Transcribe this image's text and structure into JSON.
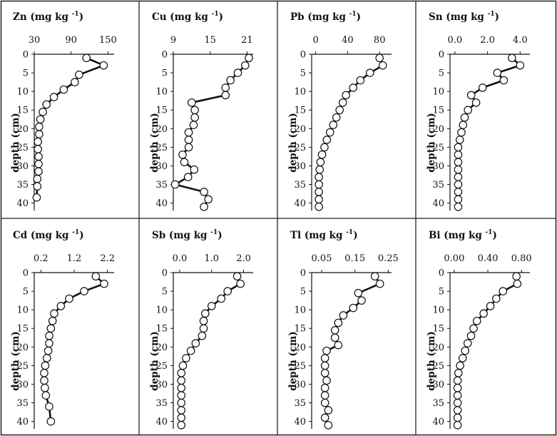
{
  "chart_data": [
    {
      "type": "line",
      "title": "Zn (mg kg",
      "title_sup": "-1",
      ")": "",
      "title_end": ")",
      "ylabel": "depth (cm)",
      "xticks": [
        "30",
        "90",
        "150"
      ],
      "xtick_values": [
        30,
        90,
        150
      ],
      "xlim": [
        30,
        160
      ],
      "yticks": [
        "0",
        "5",
        "10",
        "15",
        "20",
        "25",
        "30",
        "35",
        "40"
      ],
      "ylim": [
        0,
        42
      ],
      "x": [
        115,
        143,
        103,
        96,
        78,
        62,
        50,
        44,
        40,
        38,
        38,
        36,
        36,
        37,
        37,
        37,
        35,
        35,
        34
      ],
      "y": [
        1,
        3,
        5.5,
        7.5,
        9.5,
        11.5,
        13.5,
        15.5,
        17.5,
        19.5,
        21.5,
        23.5,
        25.5,
        27.5,
        29.5,
        31.5,
        33.5,
        35.5,
        38.5
      ]
    },
    {
      "type": "line",
      "title": "Cu (mg kg",
      "title_sup": "-1",
      "title_end": ")",
      "ylabel": "depth (cm)",
      "xticks": [
        "9",
        "15",
        "21"
      ],
      "xtick_values": [
        9,
        15,
        21
      ],
      "xlim": [
        9,
        22
      ],
      "yticks": [
        "0",
        "5",
        "10",
        "15",
        "20",
        "25",
        "30",
        "35",
        "40"
      ],
      "ylim": [
        0,
        42
      ],
      "x": [
        21.3,
        20.7,
        19.5,
        18.3,
        17.5,
        17.5,
        12,
        12.5,
        12.5,
        12.3,
        11.5,
        11.5,
        11.5,
        10.5,
        10.8,
        12.4,
        11.4,
        9.3,
        14,
        14.7,
        14
      ],
      "y": [
        1,
        3,
        5,
        7,
        9,
        11,
        13,
        15,
        17,
        19,
        21,
        23,
        25,
        27,
        29,
        31,
        33,
        35,
        37,
        39,
        41
      ]
    },
    {
      "type": "line",
      "title": "Pb (mg kg",
      "title_sup": "-1",
      "title_end": ")",
      "ylabel": "depth (cm)",
      "xticks": [
        "0",
        "40",
        "80"
      ],
      "xtick_values": [
        0,
        40,
        80
      ],
      "xlim": [
        -5,
        95
      ],
      "yticks": [
        "0",
        "5",
        "10",
        "15",
        "20",
        "25",
        "30",
        "35",
        "40"
      ],
      "ylim": [
        0,
        42
      ],
      "x": [
        80,
        84,
        68,
        56,
        47,
        38,
        34,
        30,
        26,
        22,
        18,
        14,
        11,
        8,
        6,
        5,
        4,
        4,
        4,
        4,
        4
      ],
      "y": [
        1,
        3,
        5,
        7,
        9,
        11,
        13,
        15,
        17,
        19,
        21,
        23,
        25,
        27,
        29,
        31,
        33,
        35,
        37,
        39,
        41
      ]
    },
    {
      "type": "line",
      "title": "Sn (mg kg",
      "title_sup": "-1",
      "title_end": ")",
      "ylabel": "depth (cm)",
      "xticks": [
        "0.0",
        "2.0",
        "4.0"
      ],
      "xtick_values": [
        0,
        2,
        4
      ],
      "xlim": [
        -0.3,
        4.6
      ],
      "yticks": [
        "0",
        "5",
        "10",
        "15",
        "20",
        "25",
        "30",
        "35",
        "40"
      ],
      "ylim": [
        0,
        42
      ],
      "x": [
        3.5,
        4.0,
        2.6,
        3.0,
        1.7,
        1.0,
        1.3,
        0.8,
        0.6,
        0.5,
        0.4,
        0.3,
        0.2,
        0.2,
        0.2,
        0.2,
        0.2,
        0.2,
        0.2,
        0.2,
        0.2
      ],
      "y": [
        1,
        3,
        5,
        7,
        9,
        11,
        13,
        15,
        17,
        19,
        21,
        23,
        25,
        27,
        29,
        31,
        33,
        35,
        37,
        39,
        41
      ]
    },
    {
      "type": "line",
      "title": "Cd (mg kg",
      "title_sup": "-1",
      "title_end": ")",
      "ylabel": "depth (cm)",
      "xticks": [
        "0.2",
        "1.2",
        "2.2"
      ],
      "xtick_values": [
        0.2,
        1.2,
        2.2
      ],
      "xlim": [
        0,
        2.4
      ],
      "yticks": [
        "0",
        "5",
        "10",
        "15",
        "20",
        "25",
        "30",
        "35",
        "40"
      ],
      "ylim": [
        0,
        42
      ],
      "x": [
        1.85,
        2.1,
        1.5,
        1.05,
        0.8,
        0.6,
        0.55,
        0.5,
        0.45,
        0.45,
        0.42,
        0.38,
        0.33,
        0.3,
        0.3,
        0.32,
        0.35,
        0.45,
        0.5
      ],
      "y": [
        1,
        3,
        5,
        7,
        9,
        11,
        13,
        15,
        17,
        19,
        21,
        23,
        25,
        27,
        29,
        31,
        33,
        36,
        40
      ]
    },
    {
      "type": "line",
      "title": "Sb (mg kg",
      "title_sup": "-1",
      "title_end": ")",
      "ylabel": "depth (cm)",
      "xticks": [
        "0.0",
        "1.0",
        "2.0"
      ],
      "xtick_values": [
        0,
        1,
        2
      ],
      "xlim": [
        -0.2,
        2.3
      ],
      "yticks": [
        "0",
        "5",
        "10",
        "15",
        "20",
        "25",
        "30",
        "35",
        "40"
      ],
      "ylim": [
        0,
        42
      ],
      "x": [
        1.8,
        1.9,
        1.5,
        1.3,
        1.0,
        0.8,
        0.75,
        0.75,
        0.7,
        0.5,
        0.35,
        0.2,
        0.1,
        0.05,
        0.05,
        0.05,
        0.05,
        0.05,
        0.05,
        0.05,
        0.05
      ],
      "y": [
        1,
        3,
        5,
        7,
        9,
        11,
        13,
        15,
        17,
        19,
        21,
        23,
        25,
        27,
        29,
        31,
        33,
        35,
        37,
        39,
        41
      ]
    },
    {
      "type": "line",
      "title": "Tl (mg kg",
      "title_sup": "-1",
      "title_end": ")",
      "ylabel": "depth (cm)",
      "xticks": [
        "0.05",
        "0.15",
        "0.25"
      ],
      "xtick_values": [
        0.05,
        0.15,
        0.25
      ],
      "xlim": [
        0.02,
        0.26
      ],
      "yticks": [
        "0",
        "5",
        "10",
        "15",
        "20",
        "25",
        "30",
        "35",
        "40"
      ],
      "ylim": [
        0,
        42
      ],
      "x": [
        0.21,
        0.225,
        0.16,
        0.17,
        0.145,
        0.115,
        0.1,
        0.09,
        0.09,
        0.1,
        0.065,
        0.06,
        0.06,
        0.06,
        0.065,
        0.06,
        0.06,
        0.06,
        0.07,
        0.06,
        0.07
      ],
      "y": [
        1,
        3,
        5.5,
        7.5,
        9.5,
        11.5,
        13.5,
        15.5,
        17.5,
        19.5,
        21,
        23,
        25,
        27,
        29,
        31,
        33,
        35,
        37,
        39,
        41
      ]
    },
    {
      "type": "line",
      "title": "Bi (mg kg",
      "title_sup": "-1",
      "title_end": ")",
      "ylabel": "depth (cm)",
      "xticks": [
        "0.00",
        "0.40",
        "0.80"
      ],
      "xtick_values": [
        0,
        0.4,
        0.8
      ],
      "xlim": [
        -0.05,
        0.9
      ],
      "yticks": [
        "0",
        "5",
        "10",
        "15",
        "20",
        "25",
        "30",
        "35",
        "40"
      ],
      "ylim": [
        0,
        42
      ],
      "x": [
        0.74,
        0.75,
        0.58,
        0.5,
        0.43,
        0.35,
        0.27,
        0.23,
        0.2,
        0.16,
        0.13,
        0.1,
        0.07,
        0.05,
        0.04,
        0.04,
        0.04,
        0.04,
        0.04,
        0.04,
        0.04
      ],
      "y": [
        1,
        3,
        5,
        7,
        9,
        11,
        13,
        15,
        17,
        19,
        21,
        23,
        25,
        27,
        29,
        31,
        33,
        35,
        37,
        39,
        41
      ]
    }
  ]
}
